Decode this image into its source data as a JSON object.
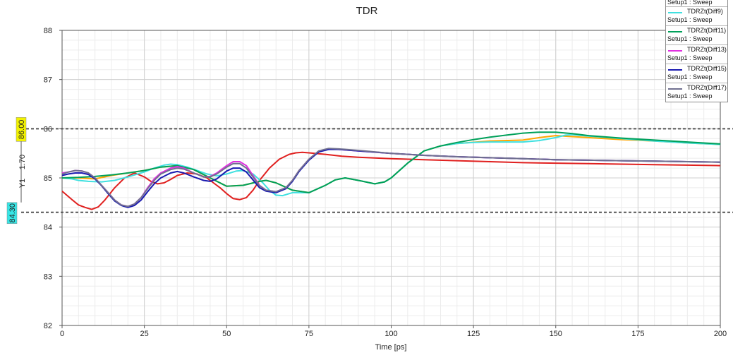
{
  "chart_data": {
    "type": "line",
    "title": "TDR",
    "xlabel": "Time [ps]",
    "ylabel": "Y1",
    "xlim": [
      0,
      200
    ],
    "ylim": [
      82,
      88
    ],
    "xticks": [
      0,
      25,
      50,
      75,
      100,
      125,
      150,
      175,
      200
    ],
    "yticks": [
      82,
      83,
      84,
      85,
      86,
      87,
      88
    ],
    "grid": true,
    "legend_position": "top-right",
    "legend_partial_top_text": "Setup1 : Sweep",
    "markers": {
      "upper": {
        "value": 86.0,
        "label": "86.00",
        "color": "#f2f200"
      },
      "lower": {
        "value": 84.3,
        "label": "84.30",
        "color": "#37e6e6"
      },
      "delta_label": "1.70"
    },
    "series": [
      {
        "name": "",
        "color": "#e0201f",
        "x": [
          0,
          3,
          5,
          7,
          9,
          11,
          13,
          16,
          19,
          22,
          25,
          27,
          29,
          31,
          33,
          35,
          38,
          41,
          44,
          46,
          48,
          50,
          52,
          54,
          56,
          58,
          60,
          63,
          66,
          69,
          71,
          73,
          75,
          80,
          85,
          90,
          100,
          110,
          120,
          130,
          140,
          150,
          160,
          170,
          180,
          190,
          200
        ],
        "y": [
          84.73,
          84.56,
          84.45,
          84.4,
          84.36,
          84.41,
          84.55,
          84.8,
          85.0,
          85.1,
          85.02,
          84.93,
          84.88,
          84.9,
          84.97,
          85.05,
          85.1,
          85.08,
          85.0,
          84.9,
          84.8,
          84.68,
          84.58,
          84.56,
          84.6,
          84.75,
          84.95,
          85.2,
          85.38,
          85.48,
          85.51,
          85.52,
          85.51,
          85.48,
          85.44,
          85.42,
          85.39,
          85.37,
          85.35,
          85.33,
          85.31,
          85.3,
          85.29,
          85.28,
          85.27,
          85.26,
          85.25
        ]
      },
      {
        "name": "",
        "color": "#ffa500",
        "x": [
          0,
          5,
          10,
          15,
          20,
          25,
          30,
          35,
          40,
          45,
          50,
          55,
          60,
          62,
          65,
          70,
          75,
          80,
          83,
          86,
          90,
          95,
          98,
          100,
          105,
          110,
          115,
          120,
          130,
          140,
          145,
          150,
          155,
          160,
          170,
          180,
          190,
          200
        ],
        "y": [
          85.0,
          85.0,
          84.98,
          85.05,
          85.1,
          85.15,
          85.22,
          85.25,
          85.17,
          85.0,
          84.83,
          84.85,
          84.93,
          84.95,
          84.9,
          84.75,
          84.7,
          84.85,
          84.96,
          85.0,
          84.95,
          84.88,
          84.92,
          85.0,
          85.3,
          85.55,
          85.65,
          85.7,
          85.75,
          85.77,
          85.82,
          85.86,
          85.84,
          85.82,
          85.78,
          85.75,
          85.71,
          85.68
        ]
      },
      {
        "name": "TDRZt(Diff9)",
        "color": "#40e0e0",
        "x": [
          0,
          3,
          5,
          8,
          12,
          16,
          20,
          22,
          25,
          28,
          31,
          33,
          35,
          38,
          41,
          44,
          47,
          50,
          53,
          55,
          58,
          61,
          63,
          65,
          67,
          70,
          73,
          75,
          80,
          83,
          86,
          90,
          95,
          98,
          100,
          105,
          110,
          115,
          120,
          125,
          130,
          135,
          140,
          145,
          150,
          153,
          155,
          160,
          170,
          180,
          190,
          200
        ],
        "y": [
          85.0,
          84.98,
          84.95,
          84.93,
          84.92,
          84.95,
          85.02,
          85.06,
          85.12,
          85.2,
          85.26,
          85.28,
          85.27,
          85.22,
          85.15,
          85.08,
          85.04,
          85.08,
          85.14,
          85.15,
          85.08,
          84.9,
          84.75,
          84.65,
          84.64,
          84.7,
          84.7,
          84.7,
          84.85,
          84.96,
          85.0,
          84.95,
          84.88,
          84.92,
          85.0,
          85.3,
          85.55,
          85.65,
          85.7,
          85.72,
          85.73,
          85.73,
          85.73,
          85.76,
          85.82,
          85.87,
          85.88,
          85.85,
          85.8,
          85.75,
          85.71,
          85.68
        ]
      },
      {
        "name": "TDRZt(Diff11)",
        "color": "#00a05a",
        "x": [
          0,
          5,
          10,
          15,
          20,
          25,
          30,
          35,
          40,
          45,
          50,
          55,
          60,
          62,
          65,
          70,
          75,
          80,
          83,
          86,
          90,
          95,
          98,
          100,
          105,
          110,
          115,
          120,
          125,
          130,
          135,
          140,
          145,
          150,
          155,
          160,
          170,
          180,
          190,
          200
        ],
        "y": [
          85.0,
          85.01,
          85.03,
          85.06,
          85.1,
          85.15,
          85.22,
          85.25,
          85.17,
          85.0,
          84.83,
          84.85,
          84.93,
          84.95,
          84.9,
          84.75,
          84.7,
          84.85,
          84.96,
          85.0,
          84.95,
          84.88,
          84.92,
          85.0,
          85.3,
          85.55,
          85.65,
          85.72,
          85.78,
          85.83,
          85.87,
          85.91,
          85.93,
          85.93,
          85.9,
          85.86,
          85.81,
          85.77,
          85.73,
          85.69
        ]
      },
      {
        "name": "TDRZt(Diff13)",
        "color": "#e030e0",
        "x": [
          0,
          2,
          4,
          6,
          8,
          10,
          12,
          14,
          16,
          18,
          20,
          22,
          24,
          26,
          28,
          30,
          33,
          35,
          37,
          40,
          43,
          45,
          47,
          50,
          52,
          54,
          56,
          58,
          60,
          62,
          65,
          68,
          70,
          72,
          75,
          78,
          81,
          84,
          90,
          100,
          110,
          120,
          130,
          140,
          150,
          160,
          170,
          180,
          190,
          200
        ],
        "y": [
          85.1,
          85.12,
          85.15,
          85.14,
          85.1,
          85.0,
          84.85,
          84.7,
          84.55,
          84.45,
          84.42,
          84.47,
          84.6,
          84.8,
          84.98,
          85.1,
          85.2,
          85.23,
          85.2,
          85.1,
          85.02,
          85.03,
          85.1,
          85.25,
          85.33,
          85.33,
          85.25,
          85.05,
          84.85,
          84.75,
          84.72,
          84.8,
          84.95,
          85.15,
          85.38,
          85.54,
          85.59,
          85.58,
          85.55,
          85.5,
          85.46,
          85.43,
          85.41,
          85.39,
          85.37,
          85.36,
          85.35,
          85.34,
          85.33,
          85.32
        ]
      },
      {
        "name": "TDRZt(Diff15)",
        "color": "#1a1ab0",
        "x": [
          0,
          2,
          4,
          6,
          8,
          10,
          12,
          14,
          16,
          18,
          20,
          22,
          24,
          26,
          28,
          30,
          33,
          35,
          37,
          40,
          43,
          45,
          47,
          50,
          52,
          54,
          56,
          58,
          60,
          62,
          65,
          68,
          70,
          72,
          75,
          78,
          81,
          84,
          90,
          100,
          110,
          120,
          130,
          140,
          150,
          160,
          170,
          180,
          190,
          200
        ],
        "y": [
          85.05,
          85.08,
          85.1,
          85.1,
          85.07,
          84.98,
          84.84,
          84.68,
          84.53,
          84.44,
          84.4,
          84.44,
          84.55,
          84.72,
          84.88,
          85.0,
          85.1,
          85.13,
          85.1,
          85.02,
          84.95,
          84.93,
          84.98,
          85.14,
          85.2,
          85.2,
          85.12,
          84.96,
          84.8,
          84.73,
          84.7,
          84.78,
          84.93,
          85.13,
          85.36,
          85.53,
          85.58,
          85.58,
          85.55,
          85.5,
          85.46,
          85.43,
          85.41,
          85.39,
          85.37,
          85.36,
          85.35,
          85.34,
          85.33,
          85.32
        ]
      },
      {
        "name": "TDRZt(Diff17)",
        "color": "#707090",
        "x": [
          0,
          2,
          4,
          6,
          8,
          10,
          12,
          14,
          16,
          18,
          20,
          22,
          24,
          26,
          28,
          30,
          33,
          35,
          37,
          40,
          43,
          45,
          47,
          50,
          52,
          54,
          56,
          58,
          60,
          62,
          65,
          68,
          70,
          72,
          75,
          78,
          81,
          84,
          90,
          100,
          110,
          120,
          130,
          140,
          150,
          160,
          170,
          180,
          190,
          200
        ],
        "y": [
          85.08,
          85.12,
          85.15,
          85.14,
          85.1,
          85.0,
          84.85,
          84.7,
          84.55,
          84.45,
          84.42,
          84.47,
          84.6,
          84.78,
          84.95,
          85.08,
          85.17,
          85.2,
          85.18,
          85.1,
          85.02,
          85.02,
          85.08,
          85.22,
          85.29,
          85.29,
          85.2,
          85.02,
          84.84,
          84.75,
          84.72,
          84.8,
          84.95,
          85.15,
          85.38,
          85.55,
          85.6,
          85.59,
          85.56,
          85.5,
          85.46,
          85.43,
          85.41,
          85.39,
          85.37,
          85.36,
          85.35,
          85.34,
          85.33,
          85.32
        ]
      }
    ]
  },
  "legend": {
    "top_partial_sub": "Setup1 : Sweep",
    "entries": [
      {
        "name": "TDRZt(Diff9)",
        "sub": "Setup1 : Sweep",
        "color": "#40e0e0"
      },
      {
        "name": "TDRZt(Diff11)",
        "sub": "Setup1 : Sweep",
        "color": "#00a05a"
      },
      {
        "name": "TDRZt(Diff13)",
        "sub": "Setup1 : Sweep",
        "color": "#e030e0"
      },
      {
        "name": "TDRZt(Diff15)",
        "sub": "Setup1 : Sweep",
        "color": "#1a1ab0"
      },
      {
        "name": "TDRZt(Diff17)",
        "sub": "Setup1 : Sweep",
        "color": "#707090"
      }
    ]
  }
}
